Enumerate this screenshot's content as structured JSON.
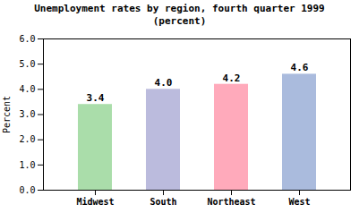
{
  "chart_data": {
    "type": "bar",
    "title": "Unemployment rates by region, fourth quarter 1999\n(percent)",
    "categories": [
      "Midwest",
      "South",
      "Northeast",
      "West"
    ],
    "values": [
      3.4,
      4.0,
      4.2,
      4.6
    ],
    "value_labels": [
      "3.4",
      "4.0",
      "4.2",
      "4.6"
    ],
    "colors": [
      "#aaddaa",
      "#bbbbdd",
      "#ffaabb",
      "#aabbdd"
    ],
    "ylabel": "Percent",
    "ylim": [
      0.0,
      6.0
    ],
    "yticks": [
      {
        "value": 0,
        "label": "0.0"
      },
      {
        "value": 1,
        "label": "1.0"
      },
      {
        "value": 2,
        "label": "2.0"
      },
      {
        "value": 3,
        "label": "3.0"
      },
      {
        "value": 4,
        "label": "4.0"
      },
      {
        "value": 5,
        "label": "5.0"
      },
      {
        "value": 6,
        "label": "6.0"
      }
    ],
    "data_labels": true,
    "grid": false
  }
}
